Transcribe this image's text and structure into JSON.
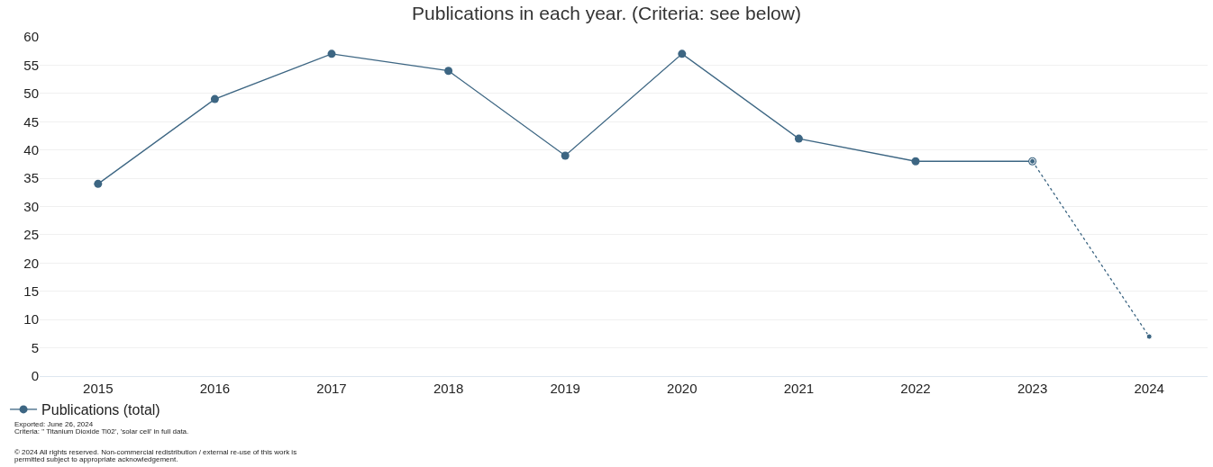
{
  "chart_data": {
    "type": "line",
    "title": "Publications in each year. (Criteria: see below)",
    "categories": [
      "2015",
      "2016",
      "2017",
      "2018",
      "2019",
      "2020",
      "2021",
      "2022",
      "2023",
      "2024"
    ],
    "series": [
      {
        "name": "Publications (total)",
        "color": "#3d6683",
        "values": [
          34,
          49,
          57,
          54,
          39,
          57,
          42,
          38,
          38,
          null
        ],
        "line_style": "solid"
      },
      {
        "color": "#3d6683",
        "values": [
          null,
          null,
          null,
          null,
          null,
          null,
          null,
          null,
          38,
          7
        ],
        "line_style": "dotted"
      }
    ],
    "ylim": [
      0,
      60
    ],
    "yticks": [
      0,
      5,
      10,
      15,
      20,
      25,
      30,
      35,
      40,
      45,
      50,
      55,
      60
    ],
    "grid": "y",
    "legend": "bottom left",
    "marker": "circle",
    "annotations": [
      "Exported: June 26, 2024",
      "Criteria: \" Titanium Dioxide Ti02', 'solar cell' in full data.",
      "© 2024 All rights reserved. Non-commercial redistribution / external re-use of this work is",
      "permitted subject to appropriate acknowledgement."
    ]
  }
}
